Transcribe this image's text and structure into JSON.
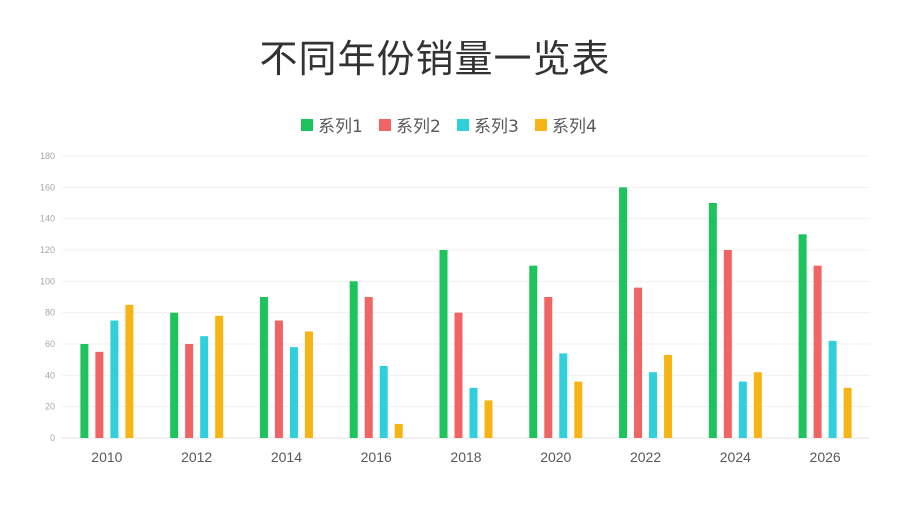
{
  "chart_data": {
    "type": "bar",
    "title": "不同年份销量一览表",
    "categories": [
      "2010",
      "2012",
      "2014",
      "2016",
      "2018",
      "2020",
      "2022",
      "2024",
      "2026"
    ],
    "series": [
      {
        "name": "系列1",
        "color": "#1dc35b",
        "values": [
          60,
          80,
          90,
          100,
          120,
          110,
          160,
          150,
          130
        ]
      },
      {
        "name": "系列2",
        "color": "#f06464",
        "values": [
          55,
          60,
          75,
          90,
          80,
          90,
          96,
          120,
          110
        ]
      },
      {
        "name": "系列3",
        "color": "#2fd0dc",
        "values": [
          75,
          65,
          58,
          46,
          32,
          54,
          42,
          36,
          62
        ]
      },
      {
        "name": "系列4",
        "color": "#f7b515",
        "values": [
          85,
          78,
          68,
          9,
          24,
          36,
          53,
          42,
          32
        ]
      }
    ],
    "ylim": [
      0,
      180
    ],
    "yticks": [
      "0",
      "20",
      "40",
      "60",
      "80",
      "100",
      "120",
      "140",
      "160",
      "180"
    ],
    "legend_position": "top",
    "grid": true
  }
}
